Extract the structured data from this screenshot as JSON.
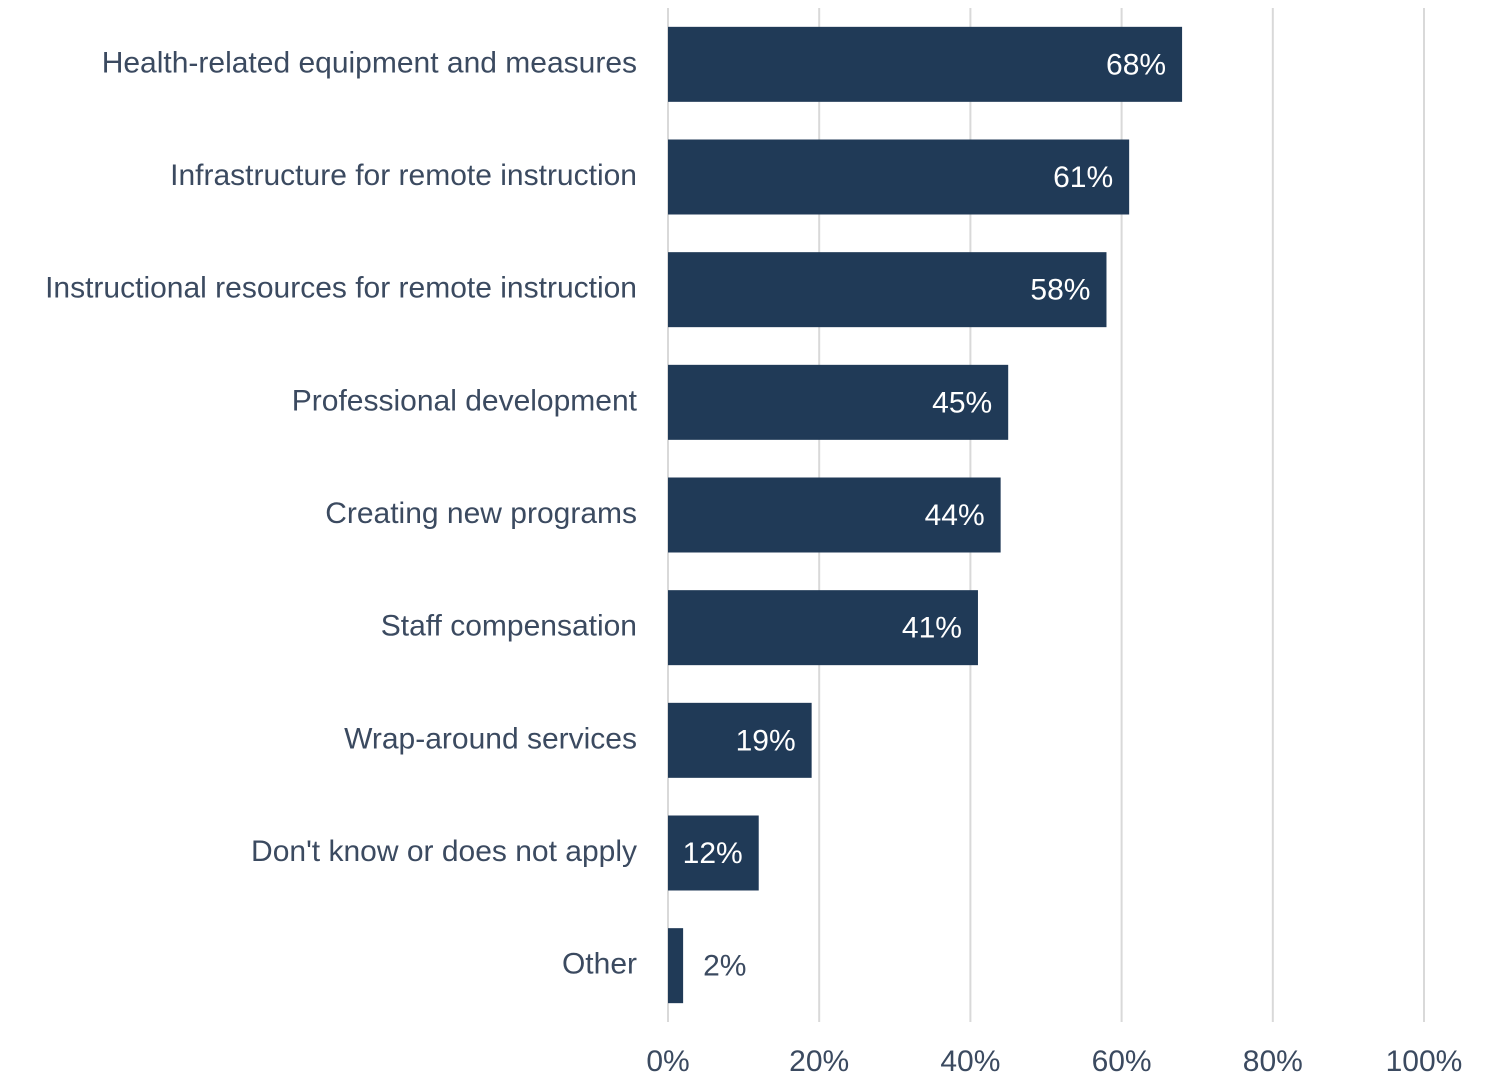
{
  "chart_data": {
    "type": "bar",
    "orientation": "horizontal",
    "categories": [
      "Health-related equipment and measures",
      "Infrastructure for remote instruction",
      "Instructional resources for remote instruction",
      "Professional development",
      "Creating new programs",
      "Staff compensation",
      "Wrap-around services",
      "Don't know or does not apply",
      "Other"
    ],
    "values": [
      68,
      61,
      58,
      45,
      44,
      41,
      19,
      12,
      2
    ],
    "value_labels": [
      "68%",
      "61%",
      "58%",
      "45%",
      "44%",
      "41%",
      "19%",
      "12%",
      "2%"
    ],
    "color": "#203a57",
    "xlim": [
      0,
      100
    ],
    "xticks": [
      {
        "value": 0,
        "label": "0%"
      },
      {
        "value": 20,
        "label": "20%"
      },
      {
        "value": 40,
        "label": "40%"
      },
      {
        "value": 60,
        "label": "60%"
      },
      {
        "value": 80,
        "label": "80%"
      },
      {
        "value": 100,
        "label": "100%"
      }
    ],
    "grid": true
  }
}
